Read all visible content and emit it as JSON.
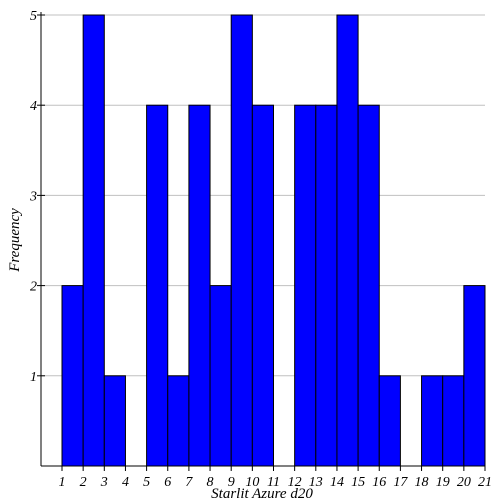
{
  "chart_data": {
    "type": "bar",
    "xlabel": "Starlit Azure d20",
    "ylabel": "Frequency",
    "xlim": [
      1,
      21
    ],
    "ylim": [
      0,
      5
    ],
    "grid": "horizontal",
    "bar_color": "#0000ff",
    "x_ticks": [
      "1",
      "2",
      "3",
      "4",
      "5",
      "6",
      "7",
      "8",
      "9",
      "10",
      "11",
      "12",
      "13",
      "14",
      "15",
      "16",
      "17",
      "18",
      "19",
      "20",
      "21"
    ],
    "y_ticks": [
      "1",
      "2",
      "3",
      "4",
      "5"
    ],
    "bins": [
      {
        "start": 1,
        "end": 2,
        "value": 2
      },
      {
        "start": 2,
        "end": 3,
        "value": 5
      },
      {
        "start": 3,
        "end": 4,
        "value": 1
      },
      {
        "start": 4,
        "end": 5,
        "value": 0
      },
      {
        "start": 5,
        "end": 6,
        "value": 4
      },
      {
        "start": 6,
        "end": 7,
        "value": 1
      },
      {
        "start": 7,
        "end": 8,
        "value": 4
      },
      {
        "start": 8,
        "end": 9,
        "value": 2
      },
      {
        "start": 9,
        "end": 10,
        "value": 5
      },
      {
        "start": 10,
        "end": 11,
        "value": 4
      },
      {
        "start": 11,
        "end": 12,
        "value": 0
      },
      {
        "start": 12,
        "end": 13,
        "value": 4
      },
      {
        "start": 13,
        "end": 14,
        "value": 4
      },
      {
        "start": 14,
        "end": 15,
        "value": 5
      },
      {
        "start": 15,
        "end": 16,
        "value": 4
      },
      {
        "start": 16,
        "end": 17,
        "value": 1
      },
      {
        "start": 17,
        "end": 18,
        "value": 0
      },
      {
        "start": 18,
        "end": 19,
        "value": 1
      },
      {
        "start": 19,
        "end": 20,
        "value": 1
      },
      {
        "start": 20,
        "end": 21,
        "value": 2
      }
    ]
  }
}
